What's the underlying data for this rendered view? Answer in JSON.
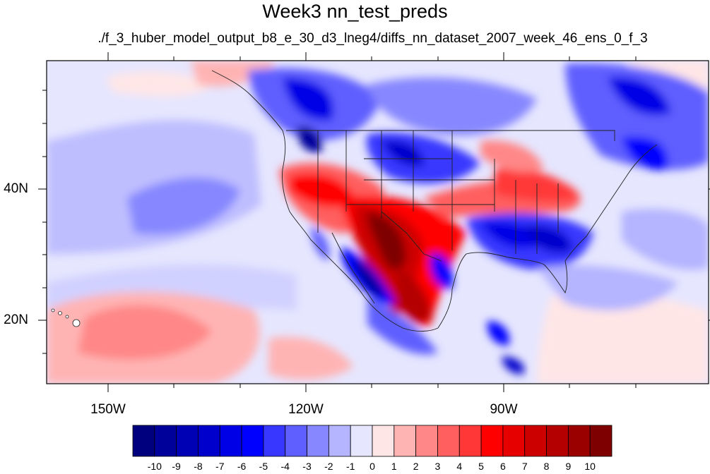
{
  "title": "Week3 nn_test_preds",
  "subtitle": "./f_3_huber_model_output_b8_e_30_d3_lneg4/diffs_nn_dataset_2007_week_46_ens_0_f_3",
  "map": {
    "region": "Contiguous United States, Mexico, southern Canada and eastern North Pacific",
    "projection": "cylindrical equidistant",
    "lon_range": [
      -160,
      -60
    ],
    "lat_range": [
      11,
      60
    ],
    "lon_ticks": [
      "150W",
      "120W",
      "90W"
    ],
    "lat_ticks": [
      "40N",
      "20N"
    ],
    "field": "difference (predicted anomaly), diverging blue-white-red"
  },
  "colorbar": {
    "labels": [
      "-10",
      "-9",
      "-8",
      "-7",
      "-6",
      "-5",
      "-4",
      "-3",
      "-2",
      "-1",
      "0",
      "1",
      "2",
      "3",
      "4",
      "5",
      "6",
      "7",
      "8",
      "9",
      "10"
    ],
    "colors": [
      "#00007f",
      "#00009b",
      "#0000b4",
      "#0000cd",
      "#0000e6",
      "#0000ff",
      "#3737ff",
      "#5f5fff",
      "#8787ff",
      "#b4b4ff",
      "#e6e6ff",
      "#ffe6e6",
      "#ffb4b4",
      "#ff8787",
      "#ff5f5f",
      "#ff3737",
      "#ff0000",
      "#e60000",
      "#cd0000",
      "#b40000",
      "#9b0000",
      "#7f0000"
    ]
  }
}
